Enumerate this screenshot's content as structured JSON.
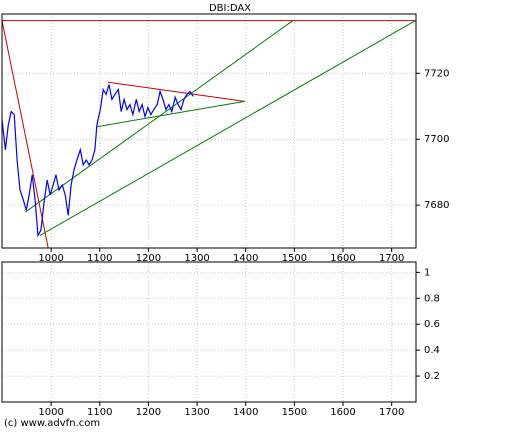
{
  "chart_data": [
    {
      "type": "line",
      "title": "DBI:DAX",
      "xlim": [
        899,
        1750
      ],
      "xticks": [
        1000,
        1100,
        1200,
        1300,
        1400,
        1500,
        1600,
        1700
      ],
      "ylim": [
        7667,
        7738
      ],
      "yticks": [
        7680,
        7700,
        7720
      ],
      "grid": true,
      "series": [
        {
          "color": "#0000ff",
          "x": [
            899,
            906,
            912,
            918,
            924,
            930,
            936,
            943,
            949,
            955,
            961,
            967,
            973,
            979,
            986,
            992,
            998,
            1004,
            1010,
            1016,
            1023,
            1029,
            1035,
            1041,
            1047,
            1053,
            1060,
            1066,
            1072,
            1078,
            1084,
            1090,
            1094,
            1101,
            1107,
            1113,
            1119,
            1125,
            1131,
            1138,
            1144,
            1150,
            1156,
            1162,
            1168,
            1175,
            1181,
            1187,
            1193,
            1199,
            1205,
            1211,
            1218,
            1224,
            1230,
            1236,
            1242,
            1248,
            1255,
            1261,
            1267,
            1273,
            1279,
            1285,
            1292
          ],
          "values": [
            7706.0,
            7696.8,
            7704.4,
            7708.4,
            7707.5,
            7693.7,
            7684.6,
            7681.5,
            7678.5,
            7683.1,
            7689.2,
            7681.5,
            7670.8,
            7672.4,
            7681.5,
            7687.6,
            7683.1,
            7686.1,
            7689.2,
            7684.6,
            7686.1,
            7683.1,
            7676.9,
            7686.1,
            7690.7,
            7693.7,
            7696.8,
            7692.2,
            7693.7,
            7692.2,
            7693.7,
            7696.8,
            7704.4,
            7709.0,
            7715.1,
            7713.6,
            7716.6,
            7712.1,
            7713.6,
            7715.1,
            7708.4,
            7712.1,
            7709.0,
            7710.5,
            7707.5,
            7712.1,
            7708.4,
            7710.5,
            7706.9,
            7709.6,
            7707.5,
            7709.0,
            7710.5,
            7714.5,
            7712.1,
            7709.0,
            7710.5,
            7708.4,
            7712.7,
            7710.5,
            7709.0,
            7712.1,
            7713.6,
            7714.5,
            7713.0
          ]
        }
      ],
      "trend_lines": [
        {
          "color": "#cc0000",
          "x": [
            899,
            1749
          ],
          "y": [
            7736,
            7736
          ]
        },
        {
          "color": "#cc0000",
          "x": [
            899,
            994
          ],
          "y": [
            7736,
            7667
          ]
        },
        {
          "color": "#cc0000",
          "x": [
            1117,
            1398
          ],
          "y": [
            7717.3,
            7711.5
          ]
        },
        {
          "color": "#008000",
          "x": [
            1094,
            1398
          ],
          "y": [
            7703.8,
            7711.5
          ]
        },
        {
          "color": "#008000",
          "x": [
            947,
            1497
          ],
          "y": [
            7677.9,
            7736
          ]
        },
        {
          "color": "#008000",
          "x": [
            977,
            1749
          ],
          "y": [
            7670.8,
            7736
          ]
        }
      ]
    },
    {
      "type": "line",
      "xlim": [
        899,
        1750
      ],
      "xticks": [
        1000,
        1100,
        1200,
        1300,
        1400,
        1500,
        1600,
        1700
      ],
      "ylim": [
        0,
        1.08
      ],
      "yticks": [
        0.2,
        0.4,
        0.6,
        0.8,
        1
      ],
      "grid": true,
      "series": []
    }
  ],
  "source": "(c) www.advfn.com"
}
